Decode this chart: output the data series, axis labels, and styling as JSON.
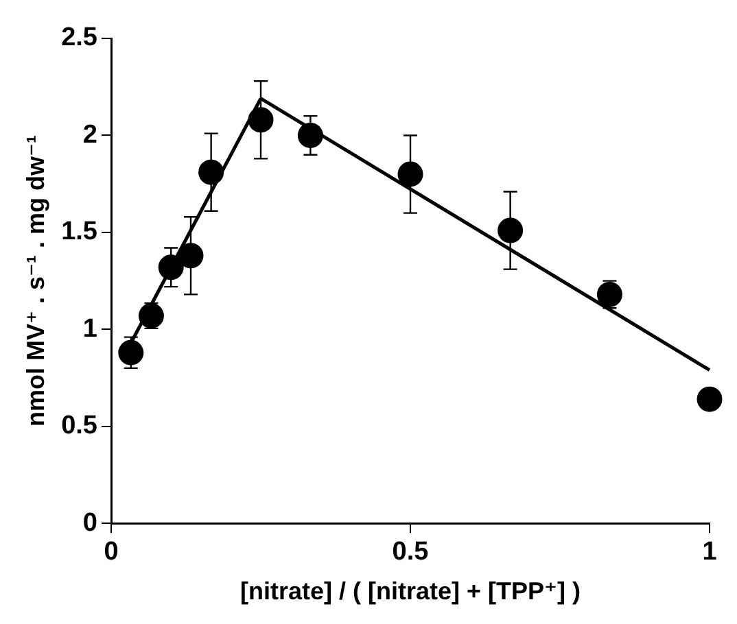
{
  "chart_data": {
    "type": "scatter",
    "xlabel": "[nitrate] / ( [nitrate] + [TPP⁺] )",
    "ylabel": "nmol MV⁺ . s⁻¹ . mg dw⁻¹",
    "xlim": [
      0,
      1
    ],
    "xticks": [
      0,
      0.5,
      1
    ],
    "ylim": [
      0,
      2.5
    ],
    "yticks": [
      0,
      0.5,
      1,
      1.5,
      2,
      2.5
    ],
    "grid": false,
    "legend": false,
    "series": [
      {
        "type": "scatter",
        "color": "#000000",
        "marker": "circle",
        "x": [
          0.033,
          0.067,
          0.1,
          0.133,
          0.167,
          0.25,
          0.333,
          0.5,
          0.667,
          0.833,
          1
        ],
        "values": [
          0.88,
          1.07,
          1.32,
          1.38,
          1.81,
          2.08,
          2.0,
          1.8,
          1.51,
          1.18,
          0.64
        ],
        "errors": [
          0.08,
          0.065,
          0.1,
          0.2,
          0.2,
          0.2,
          0.1,
          0.2,
          0.2,
          0.07,
          null
        ]
      },
      {
        "type": "line",
        "color": "#000000",
        "marker": "none",
        "line_style": "solid",
        "x": [
          0.033,
          0.25
        ],
        "values": [
          0.93,
          2.19
        ]
      },
      {
        "type": "line",
        "color": "#000000",
        "marker": "none",
        "line_style": "solid",
        "x": [
          0.25,
          1
        ],
        "values": [
          2.19,
          0.79
        ]
      }
    ]
  }
}
